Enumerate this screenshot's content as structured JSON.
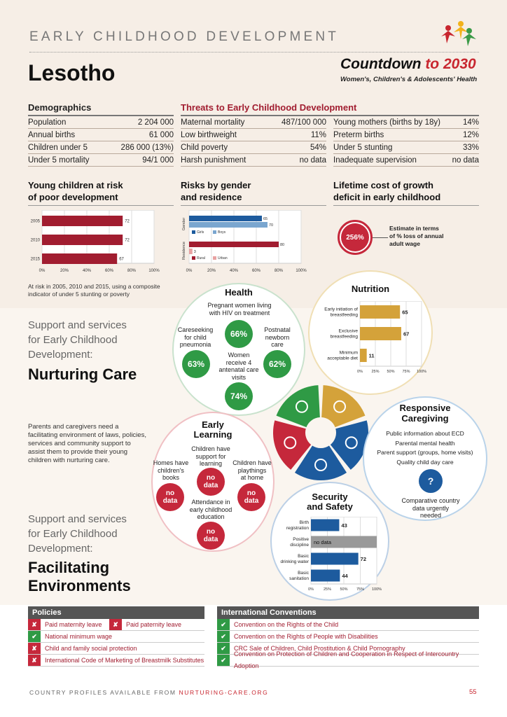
{
  "header": {
    "kicker": "EARLY CHILDHOOD DEVELOPMENT",
    "country": "Lesotho",
    "brand_part1": "Countdown",
    "brand_part2": "to 2030",
    "brand_sub": "Women's, Children's & Adolescents' Health"
  },
  "demographics": {
    "title": "Demographics",
    "rows": [
      {
        "label": "Population",
        "value": "2 204 000"
      },
      {
        "label": "Annual births",
        "value": "61 000"
      },
      {
        "label": "Children under 5",
        "value": "286 000 (13%)"
      },
      {
        "label": "Under 5 mortality",
        "value": "94/1 000"
      }
    ]
  },
  "threats": {
    "title": "Threats to Early Childhood Development",
    "left": [
      {
        "label": "Maternal mortality",
        "value": "487/100 000"
      },
      {
        "label": "Low birthweight",
        "value": "11%"
      },
      {
        "label": "Child poverty",
        "value": "54%"
      },
      {
        "label": "Harsh punishment",
        "value": "no data"
      }
    ],
    "right": [
      {
        "label": "Young mothers (births by 18y)",
        "value": "14%"
      },
      {
        "label": "Preterm births",
        "value": "12%"
      },
      {
        "label": "Under 5 stunting",
        "value": "33%"
      },
      {
        "label": "Inadequate supervision",
        "value": "no data"
      }
    ]
  },
  "chart_data": [
    {
      "type": "bar",
      "title_l1": "Young children at risk",
      "title_l2": "of poor development",
      "categories": [
        "2005",
        "2010",
        "2015"
      ],
      "values": [
        72,
        72,
        67
      ],
      "labels": [
        "72",
        "72",
        "67"
      ],
      "ticks": [
        "0%",
        "20%",
        "40%",
        "60%",
        "80%",
        "100%"
      ],
      "xlim": [
        0,
        100
      ],
      "note": "At risk in 2005, 2010 and 2015, using a composite indicator of under 5 stunting or poverty",
      "color": "#a11d30"
    },
    {
      "type": "bar",
      "title_l1": "Risks by gender",
      "title_l2": "and residence",
      "groups": [
        "Gender",
        "Residence"
      ],
      "series": [
        {
          "name": "Girls",
          "value": 65,
          "label": "65",
          "color": "#1d5b9e"
        },
        {
          "name": "Boys",
          "value": 70,
          "label": "70",
          "color": "#7aa6cf"
        },
        {
          "name": "Rural",
          "value": 80,
          "label": "80",
          "color": "#a11d30"
        },
        {
          "name": "Urban",
          "value": 3,
          "label": "3",
          "color": "#e8a2a2"
        }
      ],
      "ticks": [
        "0%",
        "20%",
        "40%",
        "60%",
        "80%",
        "100%"
      ],
      "xlim": [
        0,
        100
      ]
    },
    {
      "type": "bar",
      "title": "Nutrition",
      "categories": [
        "Early initiation of breastfeeding",
        "Exclusive breastfeeding",
        "Minimum acceptable diet"
      ],
      "cat_lines": [
        [
          "Early initiation of",
          "breastfeeding"
        ],
        [
          "Exclusive",
          "breastfeeding"
        ],
        [
          "Minimum",
          "acceptable diet"
        ]
      ],
      "values": [
        65,
        67,
        11
      ],
      "labels": [
        "65",
        "67",
        "11"
      ],
      "ticks": [
        "0%",
        "25%",
        "50%",
        "75%",
        "100%"
      ],
      "xlim": [
        0,
        100
      ],
      "color": "#d4a23a"
    },
    {
      "type": "bar",
      "title_l1": "Security",
      "title_l2": "and Safety",
      "categories": [
        "Birth registration",
        "Positive discipline",
        "Basic drinking water",
        "Basic sanitation"
      ],
      "cat_lines": [
        [
          "Birth",
          "registration"
        ],
        [
          "Positive",
          "discipline"
        ],
        [
          "Basic",
          "drinking water"
        ],
        [
          "Basic",
          "sanitation"
        ]
      ],
      "values": [
        43,
        null,
        72,
        44
      ],
      "labels": [
        "43",
        "no data",
        "72",
        "44"
      ],
      "ticks": [
        "0%",
        "25%",
        "50%",
        "75%",
        "100%"
      ],
      "xlim": [
        0,
        100
      ],
      "color": "#1d5b9e"
    }
  ],
  "lifetime": {
    "title_l1": "Lifetime cost of growth",
    "title_l2": "deficit in early childhood",
    "value": "256%",
    "desc_l1": "Estimate in terms",
    "desc_l2": "of % loss of annual",
    "desc_l3": "adult wage"
  },
  "support1": {
    "l1": "Support and services",
    "l2": "for Early Childhood",
    "l3": "Development:",
    "big": "Nurturing Care"
  },
  "paragraph": "Parents and caregivers need a facilitating environment of laws, policies, services and community support to assist them to provide their young children with nurturing care.",
  "support2": {
    "l1": "Support and services",
    "l2": "for Early Childhood",
    "l3": "Development:",
    "big1": "Facilitating",
    "big2": "Environments"
  },
  "health": {
    "title": "Health",
    "pregnant_l1": "Pregnant women living",
    "pregnant_l2": "with HIV on treatment",
    "pregnant_value": "66%",
    "care_l1": "Careseeking",
    "care_l2": "for child",
    "care_l3": "pneumonia",
    "care_value": "63%",
    "postnatal_l1": "Postnatal",
    "postnatal_l2": "newborn",
    "postnatal_l3": "care",
    "postnatal_value": "62%",
    "anc_l1": "Women",
    "anc_l2": "receive 4",
    "anc_l3": "antenatal care",
    "anc_l4": "visits",
    "anc_value": "74%"
  },
  "learning": {
    "title_l1": "Early",
    "title_l2": "Learning",
    "books_l1": "Homes have",
    "books_l2": "children's",
    "books_l3": "books",
    "books_value_l1": "no",
    "books_value_l2": "data",
    "support_l1": "Children have",
    "support_l2": "support for",
    "support_l3": "learning",
    "support_value_l1": "no",
    "support_value_l2": "data",
    "play_l1": "Children have",
    "play_l2": "playthings",
    "play_l3": "at home",
    "play_value_l1": "no",
    "play_value_l2": "data",
    "attend_l1": "Attendance in",
    "attend_l2": "early childhood",
    "attend_l3": "education",
    "attend_value_l1": "no",
    "attend_value_l2": "data"
  },
  "responsive": {
    "title_l1": "Responsive",
    "title_l2": "Caregiving",
    "items": [
      "Public information about ECD",
      "Parental mental health",
      "Parent support (groups, home visits)",
      "Quality child day care"
    ],
    "qmark": "?",
    "note_l1": "Comparative country",
    "note_l2": "data urgently",
    "note_l3": "needed"
  },
  "policies": {
    "title": "Policies",
    "rows": [
      [
        {
          "mark": "✘",
          "text": "Paid maternity leave"
        },
        {
          "mark": "✘",
          "text": "Paid paternity leave"
        }
      ],
      [
        {
          "mark": "✔",
          "text": "National minimum wage"
        }
      ],
      [
        {
          "mark": "✘",
          "text": "Child and family social protection"
        }
      ],
      [
        {
          "mark": "✘",
          "text": "International Code of Marketing of Breastmilk Substitutes"
        }
      ]
    ]
  },
  "conventions": {
    "title": "International Conventions",
    "rows": [
      {
        "mark": "✔",
        "text": "Convention on the Rights of the Child"
      },
      {
        "mark": "✔",
        "text": "Convention on the Rights of People with Disabilities"
      },
      {
        "mark": "✔",
        "text": "CRC Sale of Children, Child Prostitution & Child Pornography"
      },
      {
        "mark": "✔",
        "text": "Convention on Protection of Children and Cooperation in Respect of Intercountry Adoption"
      }
    ]
  },
  "footer": {
    "text": "COUNTRY PROFILES AVAILABLE FROM",
    "link": "NURTURING-CARE.ORG",
    "page": "55"
  }
}
